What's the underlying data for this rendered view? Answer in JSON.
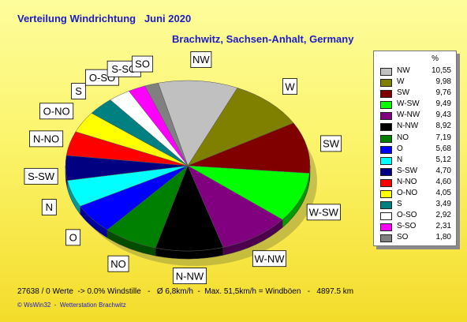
{
  "header": {
    "title": "Verteilung Windrichtung   Juni 2020",
    "subtitle": "Brachwitz, Sachsen-Anhalt, Germany"
  },
  "chart_data": {
    "type": "pie",
    "slices": [
      {
        "label": "NW",
        "value": 10.55,
        "color": "#c0c0c0"
      },
      {
        "label": "W",
        "value": 9.98,
        "color": "#808000"
      },
      {
        "label": "SW",
        "value": 9.76,
        "color": "#800000"
      },
      {
        "label": "W-SW",
        "value": 9.49,
        "color": "#00ff00"
      },
      {
        "label": "W-NW",
        "value": 9.43,
        "color": "#800080"
      },
      {
        "label": "N-NW",
        "value": 8.92,
        "color": "#000000"
      },
      {
        "label": "NO",
        "value": 7.19,
        "color": "#008000"
      },
      {
        "label": "O",
        "value": 5.68,
        "color": "#0000ff"
      },
      {
        "label": "N",
        "value": 5.12,
        "color": "#00ffff"
      },
      {
        "label": "S-SW",
        "value": 4.7,
        "color": "#000080"
      },
      {
        "label": "N-NO",
        "value": 4.6,
        "color": "#ff0000"
      },
      {
        "label": "O-NO",
        "value": 4.05,
        "color": "#ffff00"
      },
      {
        "label": "S",
        "value": 3.49,
        "color": "#008080"
      },
      {
        "label": "O-SO",
        "value": 2.92,
        "color": "#ffffff"
      },
      {
        "label": "S-SO",
        "value": 2.31,
        "color": "#ff00ff"
      },
      {
        "label": "SO",
        "value": 1.8,
        "color": "#808080"
      }
    ],
    "legend": {
      "position": "right",
      "unit_header": "%"
    }
  },
  "footer": {
    "stats": "27638 / 0 Werte  -> 0.0% Windstille   -   Ø 6,8km/h  -  Max. 51,5km/h = Windböen   -   4897.5 km",
    "copyright": "© WsWin32  -  Wetterstation Brachwitz"
  }
}
